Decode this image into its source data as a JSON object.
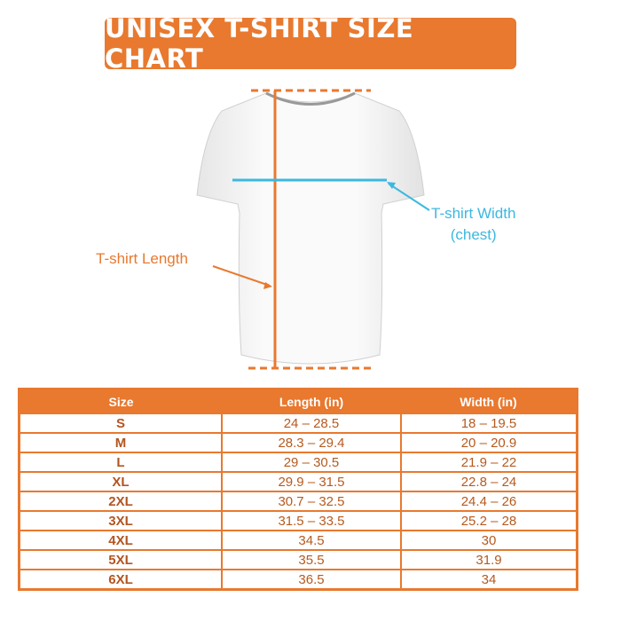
{
  "title": "UNISEX T-SHIRT SIZE CHART",
  "labels": {
    "length": "T-shirt Length",
    "width_line1": "T-shirt Width",
    "width_line2": "(chest)"
  },
  "colors": {
    "accent": "#E8792F",
    "width_line": "#3CB8E0"
  },
  "table": {
    "headers": [
      "Size",
      "Length (in)",
      "Width (in)"
    ],
    "rows": [
      [
        "S",
        "24 – 28.5",
        "18 – 19.5"
      ],
      [
        "M",
        "28.3 – 29.4",
        "20 – 20.9"
      ],
      [
        "L",
        "29 – 30.5",
        "21.9 – 22"
      ],
      [
        "XL",
        "29.9 – 31.5",
        "22.8 – 24"
      ],
      [
        "2XL",
        "30.7 – 32.5",
        "24.4 – 26"
      ],
      [
        "3XL",
        "31.5 – 33.5",
        "25.2 – 28"
      ],
      [
        "4XL",
        "34.5",
        "30"
      ],
      [
        "5XL",
        "35.5",
        "31.9"
      ],
      [
        "6XL",
        "36.5",
        "34"
      ]
    ]
  }
}
